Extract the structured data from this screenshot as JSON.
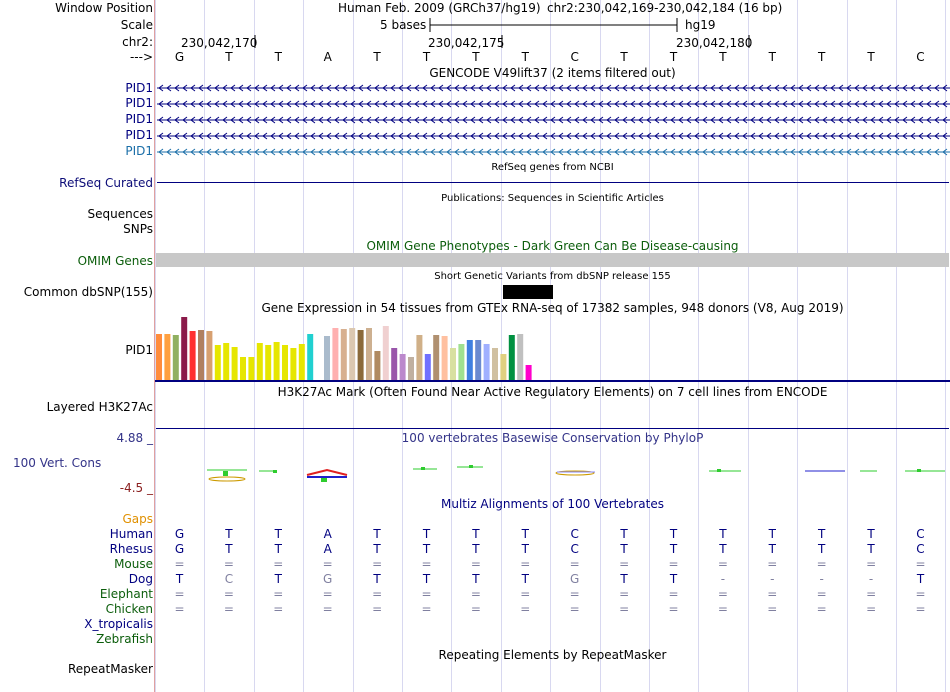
{
  "ruler": {
    "window_position_label": "Window Position",
    "scale_label": "Scale",
    "chrom_label": "chr2:",
    "strand_label": "--->",
    "assembly": "Human Feb. 2009 (GRCh37/hg19)",
    "position": "chr2:230,042,169-230,042,184 (16 bp)",
    "scale_text": "5 bases",
    "db": "hg19",
    "coord_ticks": [
      "230,042,170",
      "230,042,175",
      "230,042,180"
    ]
  },
  "sequence": {
    "bases": [
      "G",
      "T",
      "T",
      "A",
      "T",
      "T",
      "T",
      "T",
      "C",
      "T",
      "T",
      "T",
      "T",
      "T",
      "T",
      "C"
    ]
  },
  "tracks": {
    "gencode": {
      "title": "GENCODE V49lift37 (2 items filtered out)",
      "items": [
        "PID1",
        "PID1",
        "PID1",
        "PID1",
        "PID1"
      ],
      "item_color": "#000080",
      "last_item_color": "#1a6ea8"
    },
    "refseq": {
      "title": "RefSeq genes from NCBI",
      "label": "RefSeq Curated",
      "color": "#0c0c78"
    },
    "publications": {
      "title": "Publications: Sequences in Scientific Articles",
      "label_sequences": "Sequences",
      "label_snps": "SNPs"
    },
    "omim": {
      "title": "OMIM Gene Phenotypes - Dark Green Can Be Disease-causing",
      "label": "OMIM Genes",
      "color": "#0b5d0b"
    },
    "dbsnp": {
      "title": "Short Genetic Variants from dbSNP release 155",
      "label": "Common dbSNP(155)"
    },
    "gtex": {
      "title": "Gene Expression in 54 tissues from GTEx RNA-seq of 17382 samples, 948 donors (V8, Aug 2019)",
      "label": "PID1"
    },
    "h3k27ac": {
      "title": "H3K27Ac Mark (Often Found Near Active Regulatory Elements) on 7 cell lines from ENCODE",
      "label": "Layered H3K27Ac"
    },
    "conservation": {
      "title": "100 vertebrates Basewise Conservation by PhyloP",
      "label": "100 Vert. Cons",
      "max_label": "4.88 _",
      "min_label": "-4.5 _",
      "max_color": "#333388",
      "min_color": "#8b2020"
    },
    "multiz": {
      "title": "Multiz Alignments of 100 Vertebrates",
      "gaps_label": "Gaps",
      "species": [
        {
          "name": "Human",
          "color": "#000080",
          "bases": [
            "G",
            "T",
            "T",
            "A",
            "T",
            "T",
            "T",
            "T",
            "C",
            "T",
            "T",
            "T",
            "T",
            "T",
            "T",
            "C"
          ]
        },
        {
          "name": "Rhesus",
          "color": "#000080",
          "bases": [
            "G",
            "T",
            "T",
            "A",
            "T",
            "T",
            "T",
            "T",
            "C",
            "T",
            "T",
            "T",
            "T",
            "T",
            "T",
            "C"
          ]
        },
        {
          "name": "Mouse",
          "color": "#0b5d0b",
          "bases": [
            "=",
            "=",
            "=",
            "=",
            "=",
            "=",
            "=",
            "=",
            "=",
            "=",
            "=",
            "=",
            "=",
            "=",
            "=",
            "="
          ]
        },
        {
          "name": "Dog",
          "color": "#000080",
          "bases": [
            "T",
            "C",
            "T",
            "G",
            "T",
            "T",
            "T",
            "T",
            "G",
            "T",
            "T",
            "-",
            "-",
            "-",
            "-",
            "T"
          ]
        },
        {
          "name": "Elephant",
          "color": "#0b5d0b",
          "bases": [
            "=",
            "=",
            "=",
            "=",
            "=",
            "=",
            "=",
            "=",
            "=",
            "=",
            "=",
            "=",
            "=",
            "=",
            "=",
            "="
          ]
        },
        {
          "name": "Chicken",
          "color": "#0b5d0b",
          "bases": [
            "=",
            "=",
            "=",
            "=",
            "=",
            "=",
            "=",
            "=",
            "=",
            "=",
            "=",
            "=",
            "=",
            "=",
            "=",
            "="
          ]
        },
        {
          "name": "X_tropicalis",
          "color": "#000080",
          "bases": []
        },
        {
          "name": "Zebrafish",
          "color": "#0b5d0b",
          "bases": []
        }
      ]
    },
    "repeatmasker": {
      "title": "Repeating Elements by RepeatMasker",
      "label": "RepeatMasker"
    }
  },
  "gtex_bars": [
    {
      "v": 0.72,
      "c": "#ff8c3c"
    },
    {
      "v": 0.72,
      "c": "#ffa040"
    },
    {
      "v": 0.7,
      "c": "#90b060"
    },
    {
      "v": 0.98,
      "c": "#8b1a4a"
    },
    {
      "v": 0.76,
      "c": "#ff3030"
    },
    {
      "v": 0.78,
      "c": "#b08060"
    },
    {
      "v": 0.76,
      "c": "#d7a070"
    },
    {
      "v": 0.55,
      "c": "#e6e600"
    },
    {
      "v": 0.58,
      "c": "#e6e600"
    },
    {
      "v": 0.52,
      "c": "#e6e600"
    },
    {
      "v": 0.36,
      "c": "#e6e600"
    },
    {
      "v": 0.36,
      "c": "#e6e600"
    },
    {
      "v": 0.58,
      "c": "#e6e600"
    },
    {
      "v": 0.55,
      "c": "#e6e600"
    },
    {
      "v": 0.6,
      "c": "#e6e600"
    },
    {
      "v": 0.55,
      "c": "#e6e600"
    },
    {
      "v": 0.5,
      "c": "#e6e600"
    },
    {
      "v": 0.56,
      "c": "#e6e600"
    },
    {
      "v": 0.72,
      "c": "#20d0d0"
    },
    {
      "v": 0.0,
      "c": "#ffffff"
    },
    {
      "v": 0.68,
      "c": "#aabbcc"
    },
    {
      "v": 0.82,
      "c": "#ffb0b0"
    },
    {
      "v": 0.8,
      "c": "#d7b090"
    },
    {
      "v": 0.82,
      "c": "#dcc8b0"
    },
    {
      "v": 0.78,
      "c": "#8b6a3a"
    },
    {
      "v": 0.82,
      "c": "#cdb090"
    },
    {
      "v": 0.46,
      "c": "#b08a60"
    },
    {
      "v": 0.84,
      "c": "#f0d0d0"
    },
    {
      "v": 0.5,
      "c": "#9955aa"
    },
    {
      "v": 0.4,
      "c": "#bb88cc"
    },
    {
      "v": 0.36,
      "c": "#c0b0a0"
    },
    {
      "v": 0.7,
      "c": "#d0b088"
    },
    {
      "v": 0.4,
      "c": "#7070ff"
    },
    {
      "v": 0.7,
      "c": "#b09070"
    },
    {
      "v": 0.68,
      "c": "#ffc0a0"
    },
    {
      "v": 0.5,
      "c": "#d8e0a0"
    },
    {
      "v": 0.56,
      "c": "#a0e090"
    },
    {
      "v": 0.62,
      "c": "#4080e0"
    },
    {
      "v": 0.62,
      "c": "#6a8ad0"
    },
    {
      "v": 0.56,
      "c": "#a0b0ff"
    },
    {
      "v": 0.5,
      "c": "#d0c0a0"
    },
    {
      "v": 0.4,
      "c": "#e0d080"
    },
    {
      "v": 0.7,
      "c": "#009040"
    },
    {
      "v": 0.72,
      "c": "#c0c0c0"
    },
    {
      "v": 0.24,
      "c": "#ff00cc"
    }
  ]
}
